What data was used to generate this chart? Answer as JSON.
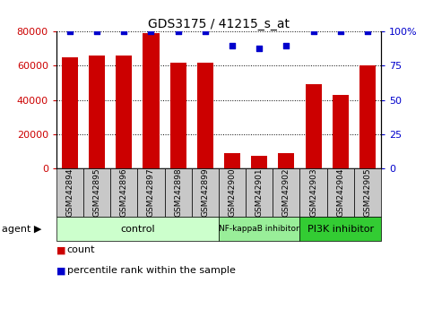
{
  "title": "GDS3175 / 41215_s_at",
  "samples": [
    "GSM242894",
    "GSM242895",
    "GSM242896",
    "GSM242897",
    "GSM242898",
    "GSM242899",
    "GSM242900",
    "GSM242901",
    "GSM242902",
    "GSM242903",
    "GSM242904",
    "GSM242905"
  ],
  "counts": [
    65000,
    66000,
    66000,
    79000,
    62000,
    62000,
    8500,
    7000,
    8500,
    49000,
    43000,
    60000
  ],
  "percentiles": [
    100,
    100,
    100,
    100,
    100,
    100,
    90,
    88,
    90,
    100,
    100,
    100
  ],
  "bar_color": "#cc0000",
  "dot_color": "#0000cc",
  "ylim_left": [
    0,
    80000
  ],
  "ylim_right": [
    0,
    100
  ],
  "yticks_left": [
    0,
    20000,
    40000,
    60000,
    80000
  ],
  "yticks_right": [
    0,
    25,
    50,
    75,
    100
  ],
  "ytick_labels_right": [
    "0",
    "25",
    "50",
    "75",
    "100%"
  ],
  "groups": [
    {
      "label": "control",
      "start": 0,
      "end": 5,
      "color": "#ccffcc"
    },
    {
      "label": "NF-kappaB inhibitor",
      "start": 6,
      "end": 8,
      "color": "#99ee99"
    },
    {
      "label": "PI3K inhibitor",
      "start": 9,
      "end": 11,
      "color": "#33cc33"
    }
  ],
  "agent_label": "agent",
  "legend_count_label": "count",
  "legend_pct_label": "percentile rank within the sample",
  "left_tick_color": "#cc0000",
  "right_tick_color": "#0000cc",
  "sample_box_color": "#c8c8c8",
  "fig_width": 4.83,
  "fig_height": 3.54,
  "dpi": 100
}
